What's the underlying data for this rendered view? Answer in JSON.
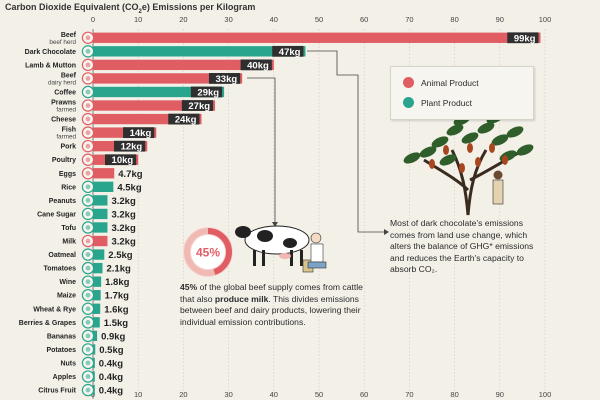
{
  "chart_data": {
    "type": "bar",
    "title": "Carbon Dioxide Equivalent (CO₂e) Emissions per Kilogram",
    "title_parts": [
      "Carbon Dioxide Equivalent (CO",
      "2",
      "e) Emissions per Kilogram"
    ],
    "xlim": [
      0,
      100
    ],
    "xticks": [
      0,
      10,
      20,
      30,
      40,
      50,
      60,
      70,
      80,
      90,
      100
    ],
    "grid": true,
    "unit": "kg",
    "categories": [
      {
        "label": "Beef",
        "sub": "beef herd",
        "value": 99,
        "value_label": "99kg",
        "group": "Animal Product",
        "icon": "beef-icon"
      },
      {
        "label": "Dark Chocolate",
        "sub": "",
        "value": 47,
        "value_label": "47kg",
        "group": "Plant Product",
        "icon": "chocolate-icon"
      },
      {
        "label": "Lamb & Mutton",
        "sub": "",
        "value": 40,
        "value_label": "40kg",
        "group": "Animal Product",
        "icon": "lamb-icon"
      },
      {
        "label": "Beef",
        "sub": "dairy herd",
        "value": 33,
        "value_label": "33kg",
        "group": "Animal Product",
        "icon": "beef-icon"
      },
      {
        "label": "Coffee",
        "sub": "",
        "value": 29,
        "value_label": "29kg",
        "group": "Plant Product",
        "icon": "coffee-icon"
      },
      {
        "label": "Prawns",
        "sub": "farmed",
        "value": 27,
        "value_label": "27kg",
        "group": "Animal Product",
        "icon": "prawn-icon"
      },
      {
        "label": "Cheese",
        "sub": "",
        "value": 24,
        "value_label": "24kg",
        "group": "Animal Product",
        "icon": "cheese-icon"
      },
      {
        "label": "Fish",
        "sub": "farmed",
        "value": 14,
        "value_label": "14kg",
        "group": "Animal Product",
        "icon": "fish-icon"
      },
      {
        "label": "Pork",
        "sub": "",
        "value": 12,
        "value_label": "12kg",
        "group": "Animal Product",
        "icon": "pork-icon"
      },
      {
        "label": "Poultry",
        "sub": "",
        "value": 10,
        "value_label": "10kg",
        "group": "Animal Product",
        "icon": "poultry-icon"
      },
      {
        "label": "Eggs",
        "sub": "",
        "value": 4.7,
        "value_label": "4.7kg",
        "group": "Animal Product",
        "icon": "eggs-icon"
      },
      {
        "label": "Rice",
        "sub": "",
        "value": 4.5,
        "value_label": "4.5kg",
        "group": "Plant Product",
        "icon": "rice-icon"
      },
      {
        "label": "Peanuts",
        "sub": "",
        "value": 3.2,
        "value_label": "3.2kg",
        "group": "Plant Product",
        "icon": "peanut-icon"
      },
      {
        "label": "Cane Sugar",
        "sub": "",
        "value": 3.2,
        "value_label": "3.2kg",
        "group": "Plant Product",
        "icon": "sugar-icon"
      },
      {
        "label": "Tofu",
        "sub": "",
        "value": 3.2,
        "value_label": "3.2kg",
        "group": "Plant Product",
        "icon": "tofu-icon"
      },
      {
        "label": "Milk",
        "sub": "",
        "value": 3.2,
        "value_label": "3.2kg",
        "group": "Animal Product",
        "icon": "milk-icon"
      },
      {
        "label": "Oatmeal",
        "sub": "",
        "value": 2.5,
        "value_label": "2.5kg",
        "group": "Plant Product",
        "icon": "oatmeal-icon"
      },
      {
        "label": "Tomatoes",
        "sub": "",
        "value": 2.1,
        "value_label": "2.1kg",
        "group": "Plant Product",
        "icon": "tomato-icon"
      },
      {
        "label": "Wine",
        "sub": "",
        "value": 1.8,
        "value_label": "1.8kg",
        "group": "Plant Product",
        "icon": "wine-icon"
      },
      {
        "label": "Maize",
        "sub": "",
        "value": 1.7,
        "value_label": "1.7kg",
        "group": "Plant Product",
        "icon": "maize-icon"
      },
      {
        "label": "Wheat & Rye",
        "sub": "",
        "value": 1.6,
        "value_label": "1.6kg",
        "group": "Plant Product",
        "icon": "wheat-icon"
      },
      {
        "label": "Berries & Grapes",
        "sub": "",
        "value": 1.5,
        "value_label": "1.5kg",
        "group": "Plant Product",
        "icon": "berries-icon"
      },
      {
        "label": "Bananas",
        "sub": "",
        "value": 0.9,
        "value_label": "0.9kg",
        "group": "Plant Product",
        "icon": "banana-icon"
      },
      {
        "label": "Potatoes",
        "sub": "",
        "value": 0.5,
        "value_label": "0.5kg",
        "group": "Plant Product",
        "icon": "potato-icon"
      },
      {
        "label": "Nuts",
        "sub": "",
        "value": 0.4,
        "value_label": "0.4kg",
        "group": "Plant Product",
        "icon": "nuts-icon"
      },
      {
        "label": "Apples",
        "sub": "",
        "value": 0.4,
        "value_label": "0.4kg",
        "group": "Plant Product",
        "icon": "apple-icon"
      },
      {
        "label": "Citrus Fruit",
        "sub": "",
        "value": 0.4,
        "value_label": "0.4kg",
        "group": "Plant Product",
        "icon": "citrus-icon"
      }
    ],
    "legend": [
      {
        "name": "Animal Product",
        "color": "#e05d63"
      },
      {
        "name": "Plant Product",
        "color": "#2aa58d"
      }
    ],
    "legend_placement": "right"
  },
  "colors": {
    "animal": "#e05d63",
    "plant": "#2aa58d",
    "label_bg": "#2f2f2f",
    "background": "#f3f0e8"
  },
  "annotations": {
    "beef_percent": "45%",
    "beef_note": {
      "pct": "45%",
      "part1": " of the global beef supply comes from cattle that also ",
      "bold": "produce milk",
      "part2": ". This divides emissions between beef and dairy products, lowering their individual emission contributions."
    },
    "chocolate_note": "Most of dark chocolate's emissions comes from land use change, which alters the balance of GHG* emissions and reduces the Earth's capacity to absorb CO₂."
  },
  "illustrations": [
    "cow-illustration",
    "cacao-tree-illustration"
  ]
}
